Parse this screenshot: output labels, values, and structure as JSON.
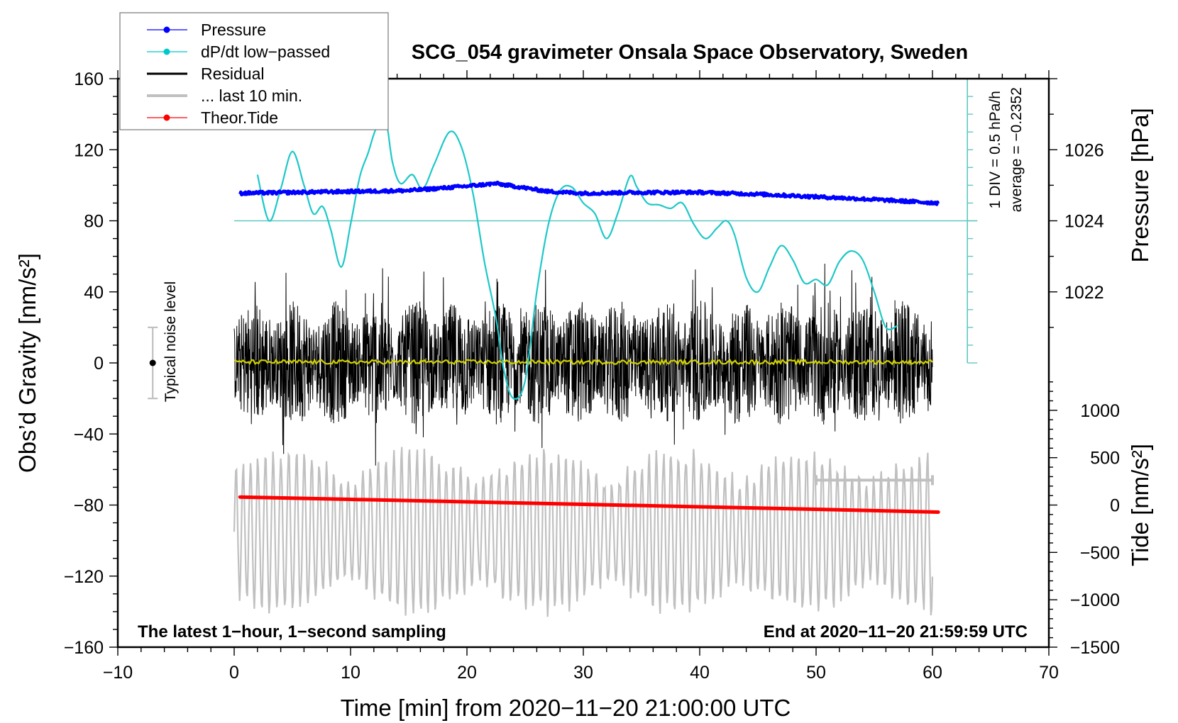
{
  "chart_data": {
    "type": "line",
    "title": "SCG_054 gravimeter Onsala Space Observatory, Sweden",
    "xlabel": "Time [min] from 2020−11−20 21:00:00 UTC",
    "ylabel_left": "Obs’d Gravity [nm/s²]",
    "ylabel_right_pressure": "Pressure [hPa]",
    "ylabel_right_tide": "Tide [nm/s²]",
    "xlim": [
      -10,
      70
    ],
    "ylim": [
      -160,
      160
    ],
    "x_ticks": [
      {
        "v": -10,
        "label": "−10"
      },
      {
        "v": 0,
        "label": "0"
      },
      {
        "v": 10,
        "label": "10"
      },
      {
        "v": 20,
        "label": "20"
      },
      {
        "v": 30,
        "label": "30"
      },
      {
        "v": 40,
        "label": "40"
      },
      {
        "v": 50,
        "label": "50"
      },
      {
        "v": 60,
        "label": "60"
      },
      {
        "v": 70,
        "label": "70"
      }
    ],
    "y_ticks_left": [
      {
        "v": 160,
        "label": "160"
      },
      {
        "v": 120,
        "label": "120"
      },
      {
        "v": 80,
        "label": "80"
      },
      {
        "v": 40,
        "label": "40"
      },
      {
        "v": 0,
        "label": "0"
      },
      {
        "v": -40,
        "label": "−40"
      },
      {
        "v": -80,
        "label": "−80"
      },
      {
        "v": -120,
        "label": "−120"
      },
      {
        "v": -160,
        "label": "−160"
      }
    ],
    "pressure_axis": {
      "ticks": [
        {
          "hpa": 1026,
          "label": "1026",
          "left_units": 120
        },
        {
          "hpa": 1024,
          "label": "1024",
          "left_units": 80
        },
        {
          "hpa": 1022,
          "label": "1022",
          "left_units": 40
        }
      ],
      "units_per_hpa": 20
    },
    "tide_axis": {
      "ticks": [
        {
          "v": 1000,
          "label": "1000",
          "left_units": -26.7
        },
        {
          "v": 500,
          "label": "500",
          "left_units": -53.3
        },
        {
          "v": 0,
          "label": "0",
          "left_units": -80
        },
        {
          "v": -500,
          "label": "−500",
          "left_units": -106.7
        },
        {
          "v": -1000,
          "label": "−1000",
          "left_units": -133.3
        },
        {
          "v": -1500,
          "label": "−1500",
          "left_units": -160
        }
      ],
      "units_per_nm": 0.05333
    },
    "legend": {
      "placement": "top-left",
      "entries": [
        {
          "label": "Pressure",
          "color": "#0000ff",
          "marker": true,
          "width": 1
        },
        {
          "label": "dP/dt low−passed",
          "color": "#00c8c8",
          "marker": true,
          "width": 1
        },
        {
          "label": "Residual",
          "color": "#000000",
          "marker": false,
          "width": 3
        },
        {
          "label": "... last 10 min.",
          "color": "#c0c0c0",
          "marker": false,
          "width": 4
        },
        {
          "label": "Theor.Tide",
          "color": "#ff0000",
          "marker": true,
          "width": 1
        }
      ]
    },
    "series": [
      {
        "name": "Pressure",
        "color": "#0000ff",
        "axis": "left_units",
        "x": [
          0.5,
          5,
          10,
          15,
          20,
          22.5,
          25,
          27,
          30,
          35,
          40,
          45,
          50,
          55,
          60.5
        ],
        "values": [
          95.5,
          96.0,
          96.5,
          97.0,
          99.5,
          101.0,
          98.5,
          96.5,
          95.5,
          96.0,
          96.0,
          95.0,
          93.5,
          92.0,
          90.0
        ]
      },
      {
        "name": "dP/dt low-passed",
        "color": "#1ec8c8",
        "axis": "left_units",
        "x": [
          2.0,
          3.0,
          4.0,
          5.0,
          6.0,
          6.8,
          7.6,
          8.3,
          9.2,
          10.0,
          10.8,
          11.5,
          12.2,
          13.0,
          13.6,
          14.3,
          15.3,
          16.2,
          17.2,
          18.5,
          19.5,
          20.5,
          21.5,
          22.5,
          23.2,
          24.0,
          25.0,
          26.0,
          27.0,
          28.0,
          29.0,
          30.0,
          31.0,
          32.0,
          33.0,
          34.0,
          34.6,
          35.5,
          36.5,
          37.5,
          38.5,
          39.5,
          40.5,
          41.5,
          42.3,
          43.0,
          44.0,
          45.0,
          46.0,
          47.0,
          48.0,
          49.0,
          50.0,
          51.0,
          52.0,
          53.0,
          54.0,
          55.0,
          56.0,
          57.0
        ],
        "values": [
          106,
          80,
          98,
          119,
          100,
          84,
          88,
          75,
          54,
          78,
          105,
          118,
          132,
          137,
          113,
          101,
          106,
          98,
          112,
          130,
          122,
          96,
          57,
          25,
          -5,
          -20,
          -10,
          40,
          78,
          97,
          99,
          90,
          84,
          70,
          85,
          105,
          99,
          90,
          89,
          87,
          90,
          78,
          70,
          76,
          80,
          72,
          48,
          40,
          54,
          66,
          58,
          45,
          47,
          44,
          57,
          63,
          58,
          40,
          20,
          21
        ]
      },
      {
        "name": "Residual",
        "color": "#000000",
        "axis": "left_units",
        "envelope": "noise",
        "x_range": [
          0,
          60
        ],
        "amplitude_typical": 35,
        "amplitude_max": 65
      },
      {
        "name": "Residual (smoothed)",
        "color": "#d0d000",
        "axis": "left_units",
        "x_range": [
          0,
          60
        ],
        "values_mean": 0.5
      },
      {
        "name": "... last 10 min.",
        "color": "#c0c0c0",
        "axis": "left_units",
        "x_range": [
          0,
          60
        ],
        "center": -95,
        "amplitude_typical": 30,
        "amplitude_max": 55
      },
      {
        "name": "Theor.Tide",
        "color": "#ff0000",
        "axis": "left_units",
        "x": [
          0.5,
          10,
          20,
          30,
          40,
          50,
          60.5
        ],
        "values": [
          -75.5,
          -76.8,
          -78.2,
          -79.6,
          -81.0,
          -82.4,
          -84.0
        ]
      }
    ],
    "annotations": {
      "noise_level_label": "Typical noise level",
      "noise_level": {
        "x": -7,
        "center": 0,
        "low": -20,
        "high": 20
      },
      "last_10min_bar": {
        "x_start": 50,
        "x_end": 60,
        "y": -66
      },
      "dpdt_scale": {
        "x": 63,
        "y_min": 0,
        "y_max": 160,
        "div_label": "1 DIV = 0.5 hPa/h",
        "average_label": "average = −0.2352",
        "zero_line_y": 80
      },
      "bottom_left": "The latest 1−hour, 1−second sampling",
      "bottom_right": "End at 2020−11−20 21:59:59 UTC"
    }
  }
}
